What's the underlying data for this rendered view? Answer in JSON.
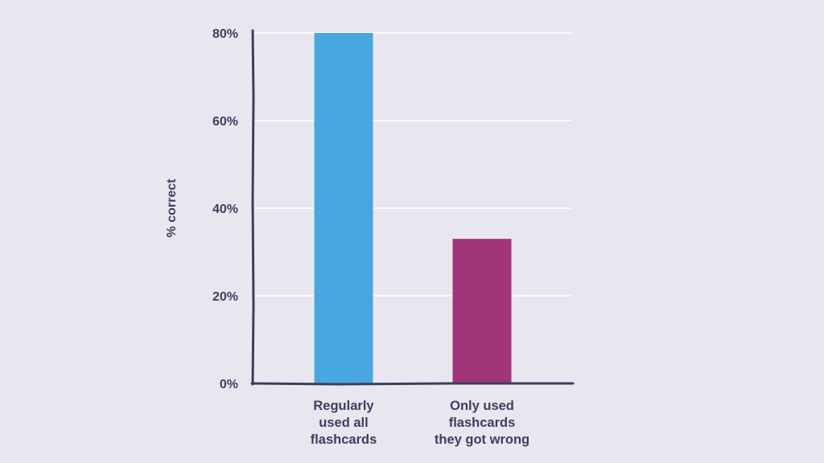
{
  "chart_data": {
    "type": "bar",
    "categories": [
      [
        "Regularly",
        "used all",
        "flashcards"
      ],
      [
        "Only used",
        "flashcards",
        "they got wrong"
      ]
    ],
    "values": [
      80,
      33
    ],
    "colors": [
      "#49a7e0",
      "#a0357a"
    ],
    "ylabel": "% correct",
    "ylim": [
      0,
      80
    ],
    "yticks": [
      0,
      20,
      40,
      60,
      80
    ],
    "ytick_labels": [
      "0%",
      "20%",
      "40%",
      "60%",
      "80%"
    ],
    "grid": true,
    "title": "",
    "xlabel": ""
  }
}
